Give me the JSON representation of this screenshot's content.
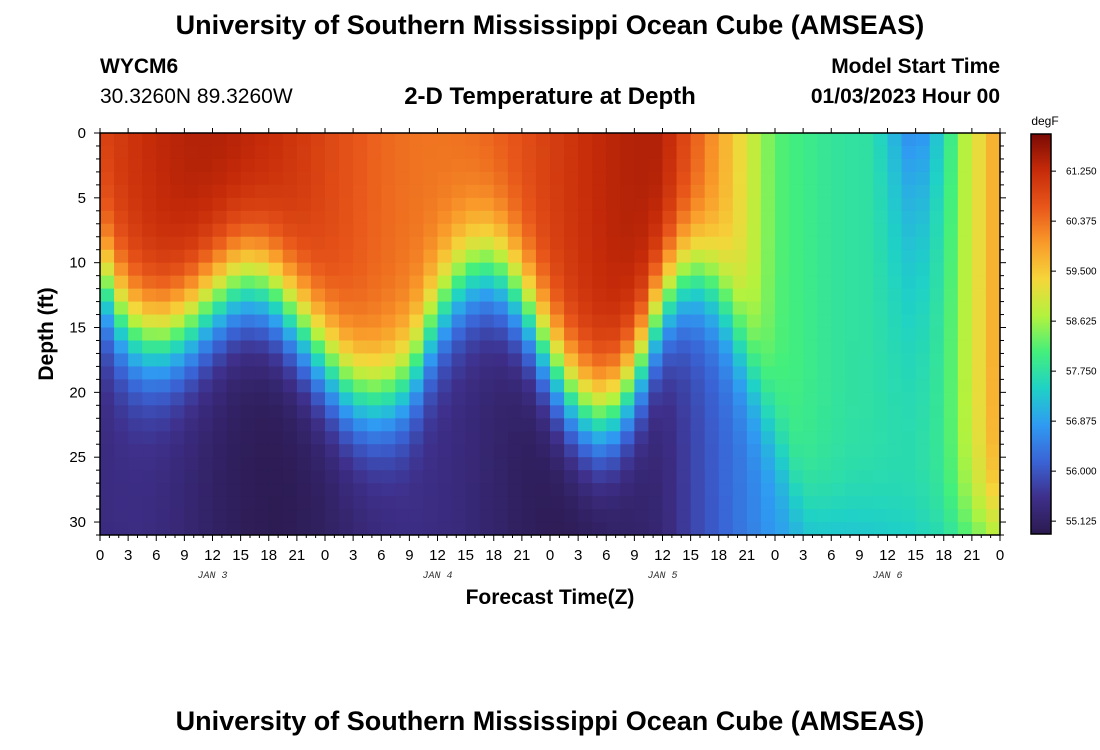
{
  "page": {
    "title": "University of Southern Mississippi Ocean Cube (AMSEAS)",
    "station_id": "WYCM6",
    "station_coords": "30.3260N  89.3260W",
    "subtitle": "2-D Temperature at Depth",
    "model_start_label": "Model Start Time",
    "model_start_value": "01/03/2023 Hour 00",
    "footer_title": "University of Southern Mississippi Ocean Cube (AMSEAS)"
  },
  "chart_data": {
    "type": "heatmap",
    "title": "2-D Temperature at Depth",
    "xlabel": "Forecast Time(Z)",
    "ylabel": "Depth (ft)",
    "x_tick_labels": [
      "0",
      "3",
      "6",
      "9",
      "12",
      "15",
      "18",
      "21",
      "0",
      "3",
      "6",
      "9",
      "12",
      "15",
      "18",
      "21",
      "0",
      "3",
      "6",
      "9",
      "12",
      "15",
      "18",
      "21",
      "0",
      "3",
      "6",
      "9",
      "12",
      "15",
      "18",
      "21",
      "0"
    ],
    "x_range_hours": [
      0,
      96
    ],
    "day_labels": [
      {
        "label": "JAN 3",
        "hour": 12
      },
      {
        "label": "JAN 4",
        "hour": 36
      },
      {
        "label": "JAN 5",
        "hour": 60
      },
      {
        "label": "JAN 6",
        "hour": 84
      }
    ],
    "y_range_ft": [
      0,
      31
    ],
    "y_ticks": [
      0,
      5,
      10,
      15,
      20,
      25,
      30
    ],
    "colorbar": {
      "unit": "degF",
      "min": 54.9,
      "max": 61.9,
      "tick_labels": [
        "61.250",
        "60.375",
        "59.500",
        "58.625",
        "57.750",
        "56.875",
        "56.000",
        "55.125"
      ],
      "tick_values": [
        61.25,
        60.375,
        59.5,
        58.625,
        57.75,
        56.875,
        56.0,
        55.125
      ],
      "colors": [
        "#2b1a4f",
        "#3e2f8a",
        "#3a64d6",
        "#2f9bf2",
        "#1fd1c6",
        "#43ef7c",
        "#b3f23e",
        "#f5d63a",
        "#f99a2a",
        "#e8561a",
        "#c62b09",
        "#7a0a04"
      ]
    },
    "thermocline_profile": {
      "hours": [
        0,
        3,
        6,
        9,
        12,
        15,
        18,
        21,
        24,
        27,
        30,
        33,
        36,
        39,
        42,
        45,
        48,
        51,
        54,
        57,
        60,
        63,
        66,
        69,
        72,
        75,
        78,
        81,
        84,
        87,
        90,
        93,
        96
      ],
      "depth_ft": [
        11,
        15,
        16,
        15,
        13,
        11.5,
        12,
        14.5,
        17.5,
        20,
        20.5,
        19,
        14,
        11,
        10.5,
        13,
        17.5,
        21,
        22,
        19,
        13,
        10.5,
        12,
        17,
        23,
        30,
        31,
        31,
        31,
        31,
        31,
        31,
        31
      ]
    }
  }
}
